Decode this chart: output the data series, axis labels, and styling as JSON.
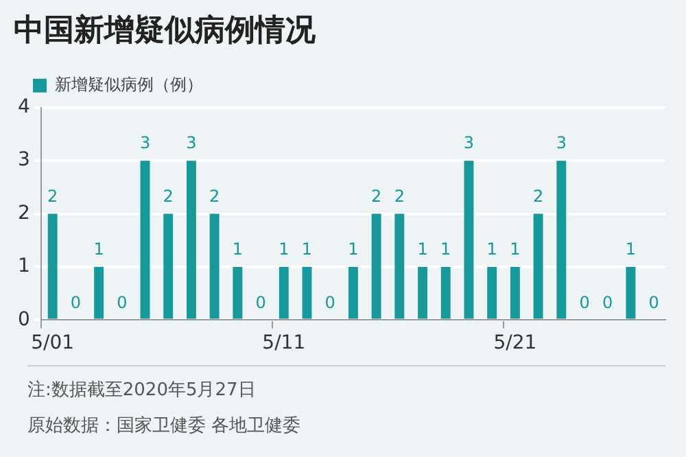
{
  "chart_data": {
    "type": "bar",
    "title": "中国新增疑似病例情况",
    "categories": [
      "5/01",
      null,
      null,
      null,
      null,
      null,
      null,
      null,
      null,
      null,
      "5/11",
      null,
      null,
      null,
      null,
      null,
      null,
      null,
      null,
      null,
      "5/21",
      null,
      null,
      null,
      null,
      null,
      null
    ],
    "series": [
      {
        "name": "新增疑似病例（例）",
        "color": "#16999a",
        "values": [
          2,
          0,
          1,
          0,
          3,
          2,
          3,
          2,
          1,
          0,
          1,
          1,
          0,
          1,
          2,
          2,
          1,
          1,
          3,
          1,
          1,
          2,
          3,
          0,
          0,
          1,
          0
        ]
      }
    ],
    "ylim": [
      0,
      4
    ],
    "yticks": [
      0,
      1,
      2,
      3,
      4
    ],
    "grid": "y",
    "legend": "top left",
    "data_labels": true,
    "annotations": [
      "注:数据截至2020年5月27日",
      "原始数据：国家卫健委 各地卫健委"
    ]
  }
}
